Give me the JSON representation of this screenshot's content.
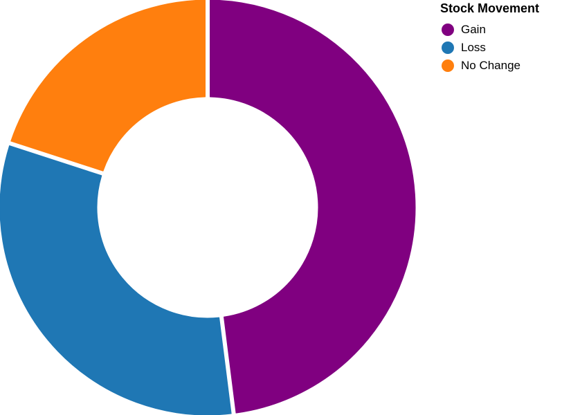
{
  "chart_data": {
    "type": "pie",
    "variant": "donut",
    "slices": [
      {
        "label": "Gain",
        "value": 48,
        "color": "#800080"
      },
      {
        "label": "Loss",
        "value": 32,
        "color": "#1f77b4"
      },
      {
        "label": "No Change",
        "value": 20,
        "color": "#ff7f0e"
      }
    ],
    "legend": {
      "title": "Stock Movement",
      "position": "top-right"
    }
  }
}
